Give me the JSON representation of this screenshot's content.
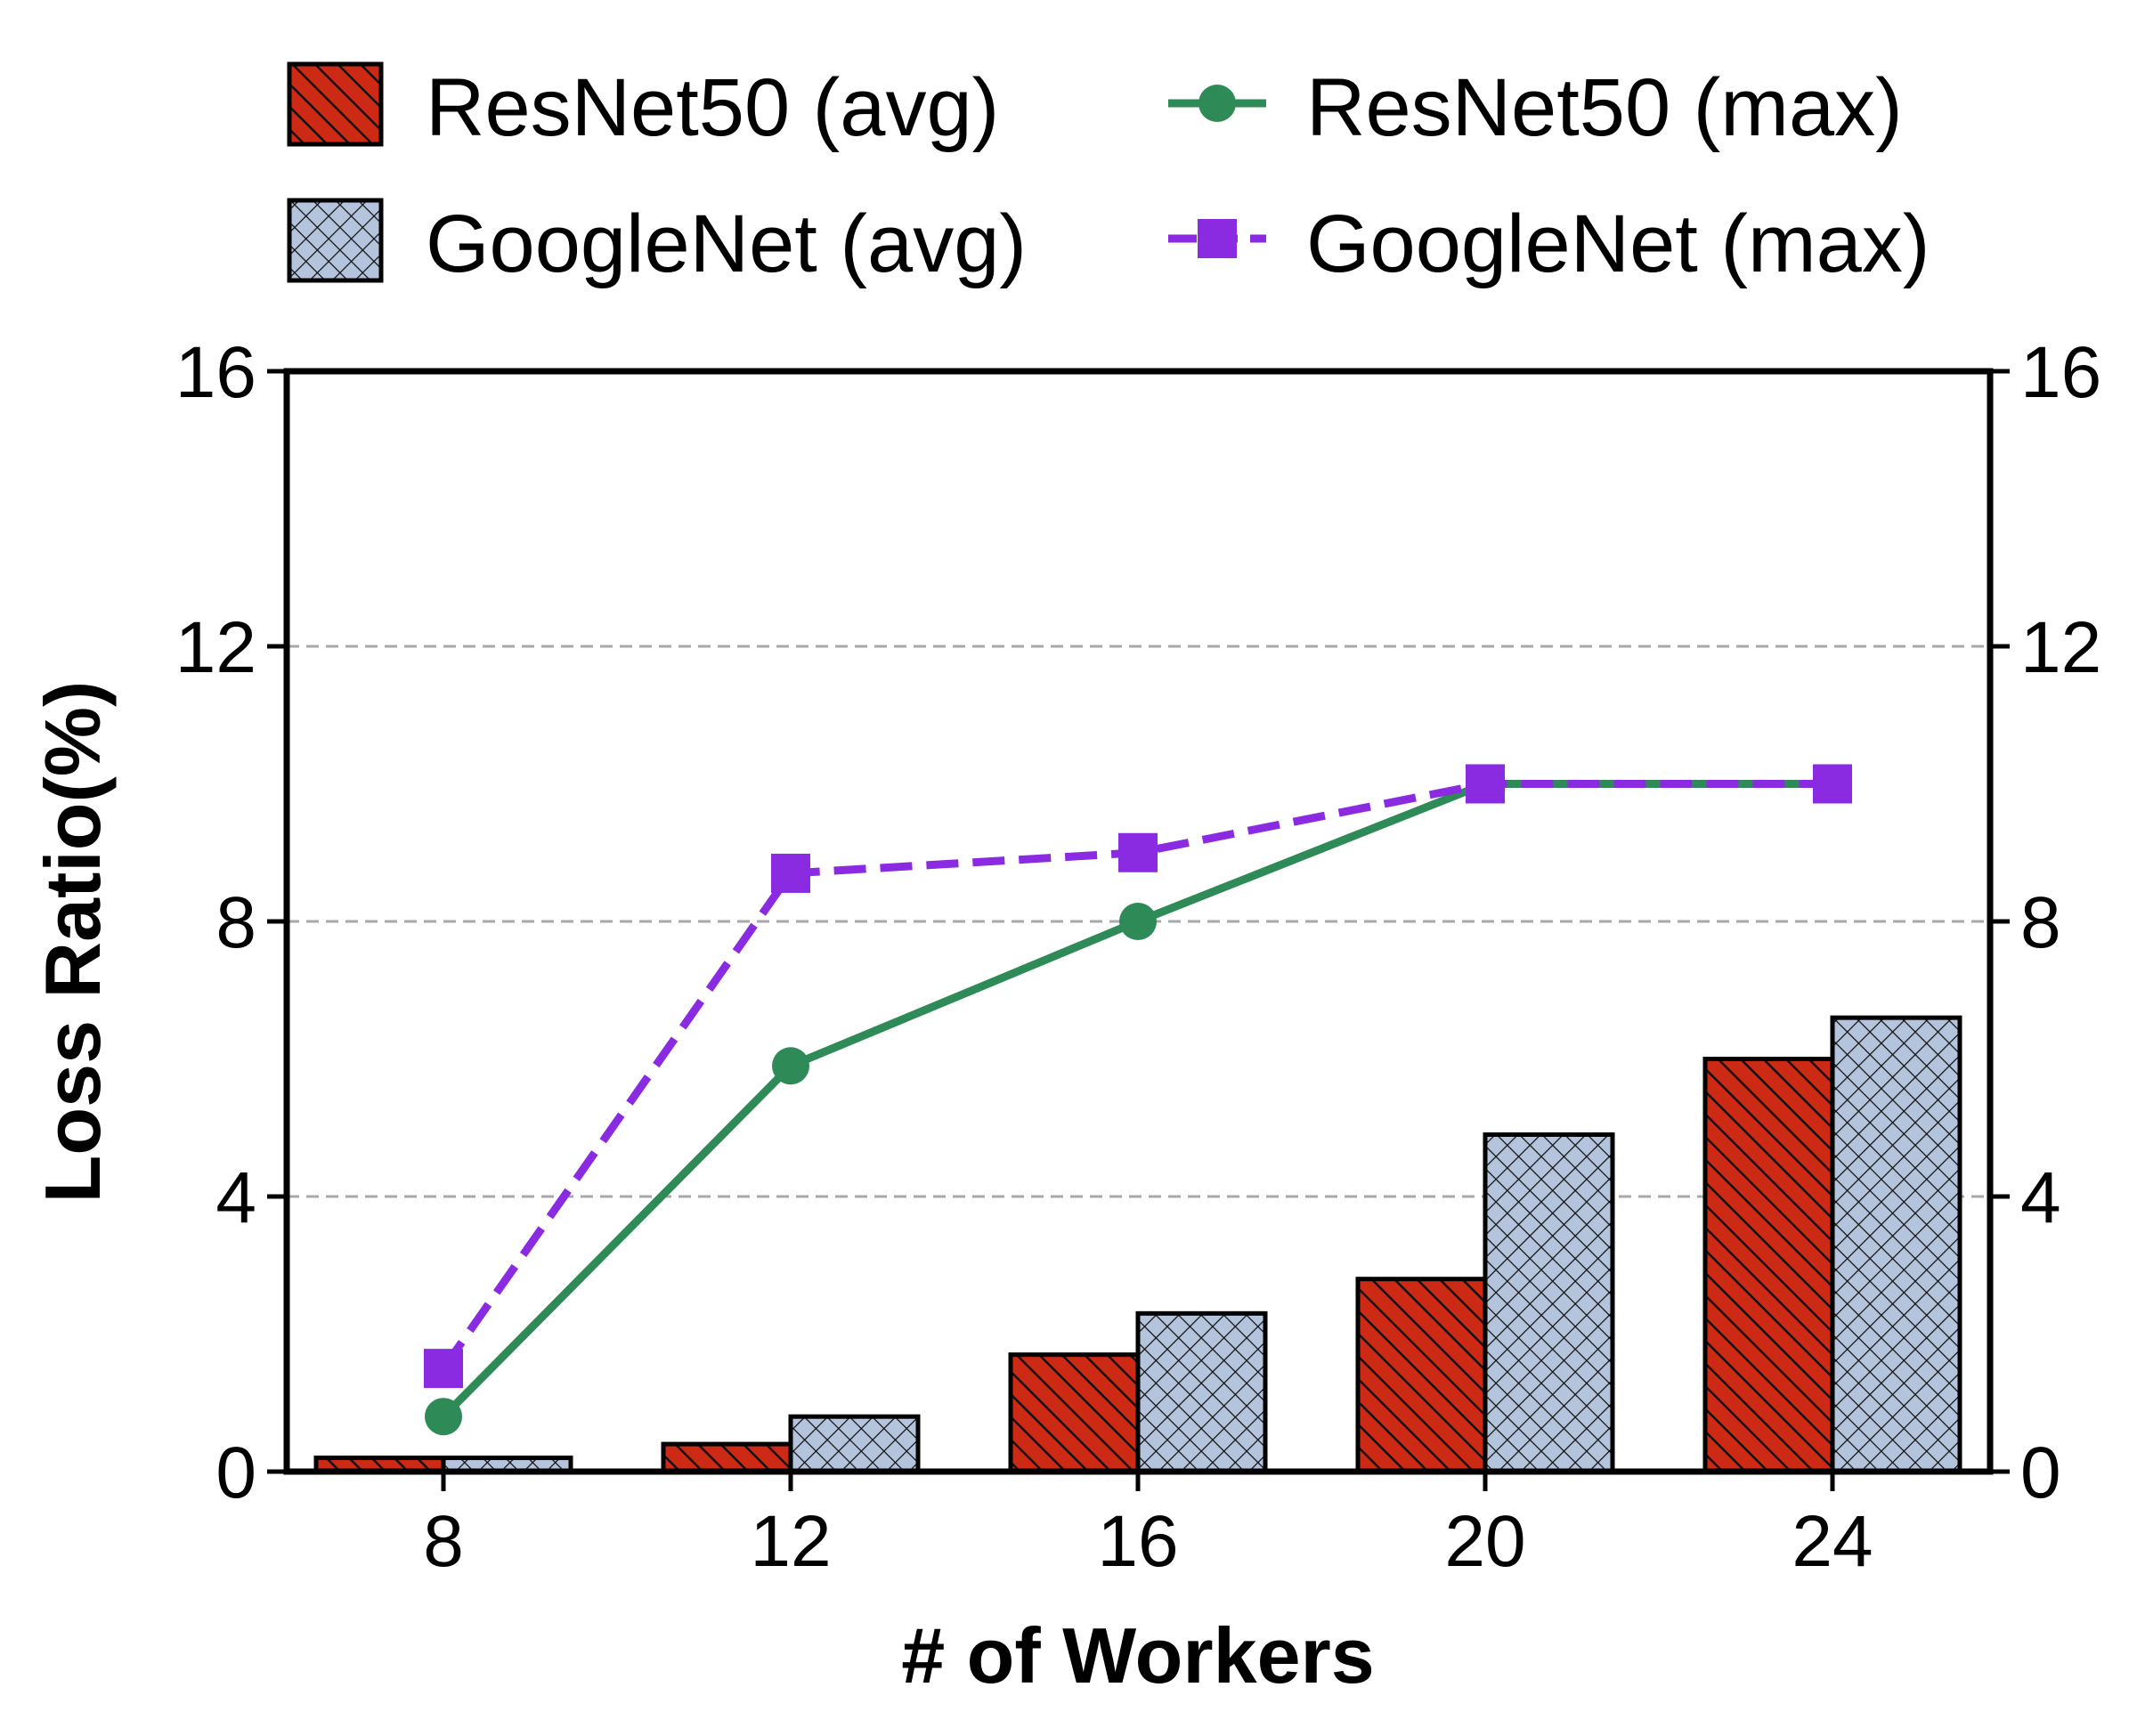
{
  "chart_data": {
    "type": "bar",
    "title": "",
    "xlabel": "# of Workers",
    "ylabel": "Loss Ratio(%)",
    "categories": [
      "8",
      "12",
      "16",
      "20",
      "24"
    ],
    "ylim": [
      0,
      16
    ],
    "yticks": [
      "0",
      "4",
      "8",
      "12",
      "16"
    ],
    "right_yticks": [
      "0",
      "4",
      "8",
      "12",
      "16"
    ],
    "grid": "horizontal dashed",
    "legend_position": "top",
    "series": [
      {
        "name": "ResNet50 (avg)",
        "kind": "bar",
        "values": [
          0.2,
          0.4,
          1.7,
          2.8,
          6.0
        ],
        "color": "#cc2a14",
        "pattern": "diagonal-hatch"
      },
      {
        "name": "GoogleNet (avg)",
        "kind": "bar",
        "values": [
          0.2,
          0.8,
          2.3,
          4.9,
          6.6
        ],
        "color": "#b4c4dc",
        "pattern": "cross-hatch"
      },
      {
        "name": "ResNet50 (max)",
        "kind": "line",
        "values": [
          0.8,
          5.9,
          8.0,
          10.0,
          10.0
        ],
        "color": "#2e8b57",
        "marker": "circle",
        "linestyle": "solid"
      },
      {
        "name": "GoogleNet (max)",
        "kind": "line",
        "values": [
          1.5,
          8.7,
          9.0,
          10.0,
          10.0
        ],
        "color": "#8a2be2",
        "marker": "square",
        "linestyle": "dashed"
      }
    ]
  }
}
